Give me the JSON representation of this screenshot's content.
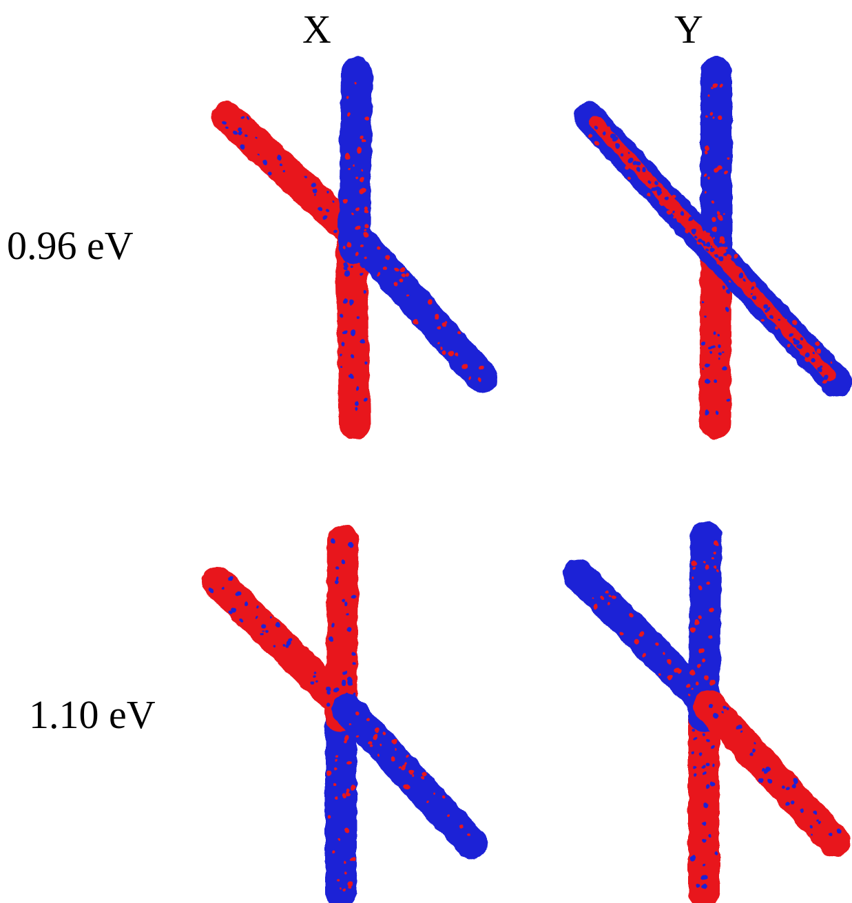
{
  "columns": [
    {
      "label": "X"
    },
    {
      "label": "Y"
    }
  ],
  "rows": [
    {
      "label": "0.96 eV"
    },
    {
      "label": "1.10 eV"
    }
  ],
  "colors": {
    "positive_lobe": "#e8141e",
    "negative_lobe": "#1f22d6",
    "background": "#ffffff"
  },
  "panels": [
    {
      "column": "X",
      "row": "0.96 eV",
      "diagonal_upper": "red",
      "diagonal_lower": "blue",
      "vertical_upper": "blue",
      "vertical_lower": "red"
    },
    {
      "column": "Y",
      "row": "0.96 eV",
      "diagonal_upper": "mixed",
      "diagonal_lower": "mixed",
      "vertical_upper": "blue",
      "vertical_lower": "red"
    },
    {
      "column": "X",
      "row": "1.10 eV",
      "diagonal_upper": "red",
      "diagonal_lower": "blue",
      "vertical_upper": "red",
      "vertical_lower": "blue"
    },
    {
      "column": "Y",
      "row": "1.10 eV",
      "diagonal_upper": "blue",
      "diagonal_lower": "red",
      "vertical_upper": "blue",
      "vertical_lower": "red"
    }
  ]
}
